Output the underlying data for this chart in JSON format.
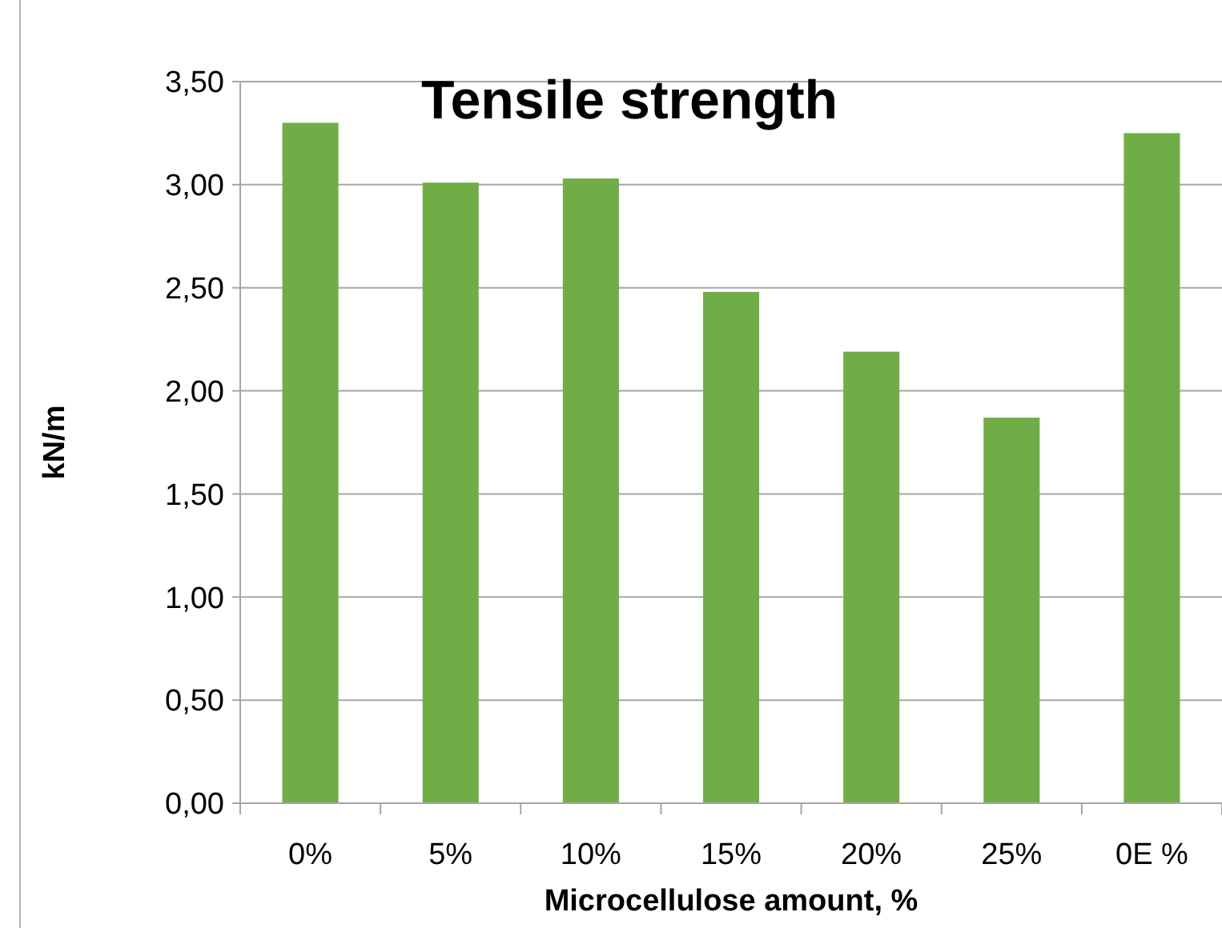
{
  "chart_data": {
    "type": "bar",
    "title": "Tensile strength",
    "xlabel": "Microcellulose amount, %",
    "ylabel": "kN/m",
    "categories": [
      "0%",
      "5%",
      "10%",
      "15%",
      "20%",
      "25%",
      "0E %"
    ],
    "values": [
      3.3,
      3.01,
      3.03,
      2.48,
      2.19,
      1.87,
      3.25
    ],
    "color": "#70ad47",
    "ylim": [
      0,
      3.5
    ],
    "yticks": [
      {
        "value": 0,
        "label": "0,00"
      },
      {
        "value": 0.5,
        "label": "0,50"
      },
      {
        "value": 1,
        "label": "1,00"
      },
      {
        "value": 1.5,
        "label": "1,50"
      },
      {
        "value": 2,
        "label": "2,00"
      },
      {
        "value": 2.5,
        "label": "2,50"
      },
      {
        "value": 3,
        "label": "3,00"
      },
      {
        "value": 3.5,
        "label": "3,50"
      }
    ],
    "grid": "y"
  }
}
